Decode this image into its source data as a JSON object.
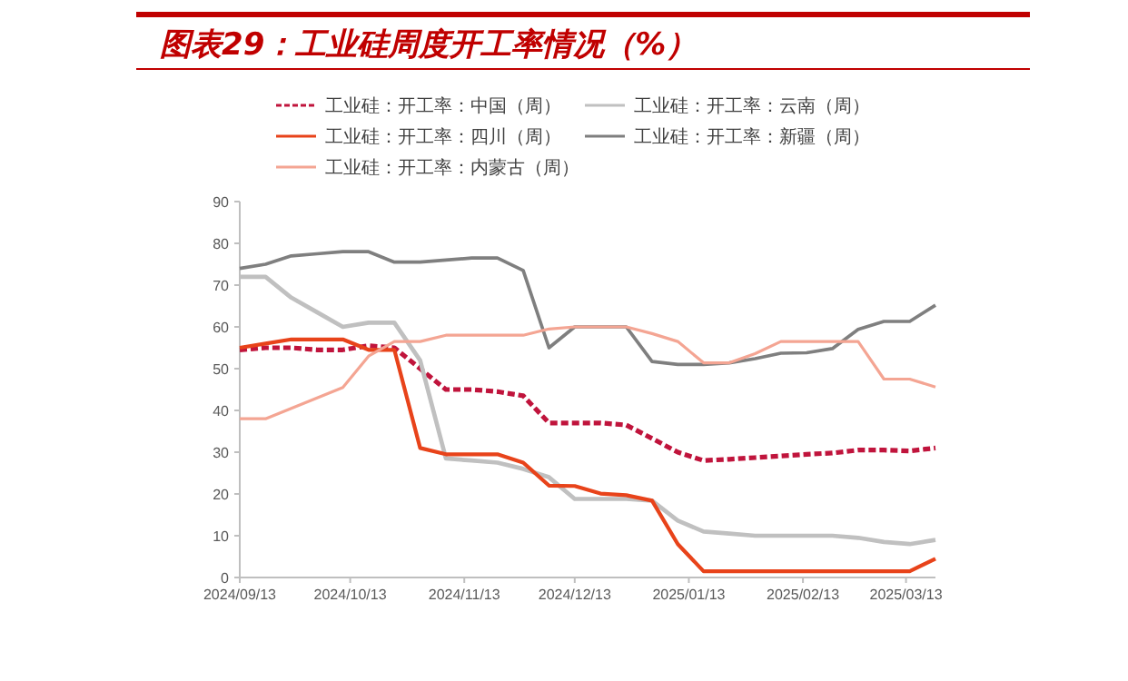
{
  "chart_data": {
    "type": "line",
    "title": "图表29：工业硅周度开工率情况（%）",
    "x": [
      "2024-09-13",
      "2024-09-20",
      "2024-09-27",
      "2024-10-04",
      "2024-10-11",
      "2024-10-18",
      "2024-10-25",
      "2024-11-01",
      "2024-11-08",
      "2024-11-15",
      "2024-11-22",
      "2024-11-29",
      "2024-12-06",
      "2024-12-13",
      "2024-12-20",
      "2024-12-27",
      "2025-01-03",
      "2025-01-10",
      "2025-01-17",
      "2025-01-24",
      "2025-01-31",
      "2025-02-07",
      "2025-02-14",
      "2025-02-21",
      "2025-02-28",
      "2025-03-07",
      "2025-03-14",
      "2025-03-21"
    ],
    "series": [
      {
        "name": "工业硅：开工率：中国（周）",
        "color": "#c0143c",
        "line_style": "dashed",
        "values": [
          54.5,
          55,
          55,
          54.5,
          54.5,
          55.5,
          55,
          50,
          45,
          45,
          44.5,
          43.5,
          37,
          37,
          37,
          36.5,
          33.3,
          30,
          28,
          28.3,
          28.7,
          29.1,
          29.5,
          29.8,
          30.5,
          30.5,
          30.3,
          31
        ]
      },
      {
        "name": "工业硅：开工率：云南（周）",
        "color": "#c0c0c0",
        "values": [
          72,
          72,
          67,
          63.5,
          60,
          61,
          61,
          52,
          28.5,
          28,
          27.5,
          26,
          24,
          18.8,
          18.8,
          18.8,
          18.4,
          13.6,
          11,
          10.5,
          10,
          10,
          10,
          10,
          9.5,
          8.5,
          8,
          9
        ]
      },
      {
        "name": "工业硅：开工率：四川（周）",
        "color": "#e8431a",
        "values": [
          55,
          56,
          57,
          57,
          57,
          54.5,
          54.5,
          31,
          29.5,
          29.5,
          29.5,
          27.5,
          22,
          21.9,
          20.1,
          19.7,
          18.4,
          8,
          1.5,
          1.5,
          1.5,
          1.5,
          1.5,
          1.5,
          1.5,
          1.5,
          1.5,
          4.5
        ]
      },
      {
        "name": "工业硅：开工率：新疆（周）",
        "color": "#7f7f7f",
        "values": [
          74,
          75,
          77,
          77.5,
          78,
          78,
          75.5,
          75.5,
          76,
          76.5,
          76.5,
          73.5,
          55,
          60,
          60,
          60,
          51.7,
          51,
          51,
          51.4,
          52.4,
          53.7,
          53.8,
          54.8,
          59.4,
          61.3,
          61.3,
          65.2
        ]
      },
      {
        "name": "工业硅：开工率：内蒙古（周）",
        "color": "#f4a593",
        "values": [
          38,
          38,
          40.5,
          43,
          45.5,
          53,
          56.5,
          56.5,
          58,
          58,
          58,
          58,
          59.5,
          60,
          60,
          60,
          58.4,
          56.5,
          51.4,
          51.4,
          53.6,
          56.5,
          56.5,
          56.5,
          56.5,
          47.5,
          47.5,
          45.6
        ]
      }
    ],
    "xlim": [
      "2024-09-13",
      "2025-03-21"
    ],
    "xticks": [
      {
        "value": "2024-09-13",
        "label": "2024/09/13"
      },
      {
        "value": "2024-10-13",
        "label": "2024/10/13"
      },
      {
        "value": "2024-11-13",
        "label": "2024/11/13"
      },
      {
        "value": "2024-12-13",
        "label": "2024/12/13"
      },
      {
        "value": "2025-01-13",
        "label": "2025/01/13"
      },
      {
        "value": "2025-02-13",
        "label": "2025/02/13"
      },
      {
        "value": "2025-03-13",
        "label": "2025/03/13"
      }
    ],
    "ylim": [
      0,
      90
    ],
    "yticks": [
      0,
      10,
      20,
      30,
      40,
      50,
      60,
      70,
      80,
      90
    ],
    "grid": false,
    "legend": "top",
    "marker": "none"
  }
}
